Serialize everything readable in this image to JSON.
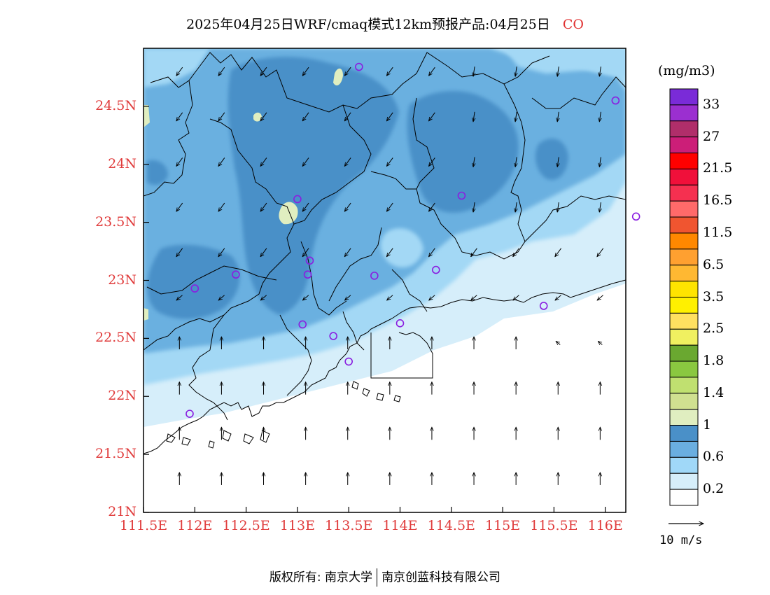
{
  "title": {
    "text": "2025年04月25日WRF/cmaq模式12km预报产品:04月25日",
    "variable": "CO"
  },
  "axes": {
    "lat_labels": [
      "24.5N",
      "24N",
      "23.5N",
      "23N",
      "22.5N",
      "22N",
      "21.5N",
      "21N"
    ],
    "lat_values": [
      24.5,
      24.0,
      23.5,
      23.0,
      22.5,
      22.0,
      21.5,
      21.0
    ],
    "lon_labels": [
      "111.5E",
      "112E",
      "112.5E",
      "113E",
      "113.5E",
      "114E",
      "114.5E",
      "115E",
      "115.5E",
      "116E"
    ],
    "lon_values": [
      111.5,
      112.0,
      112.5,
      113.0,
      113.5,
      114.0,
      114.5,
      115.0,
      115.5,
      116.0
    ],
    "lon_range": [
      111.5,
      116.2
    ],
    "lat_range": [
      21.0,
      25.0
    ]
  },
  "colorbar": {
    "unit": "(mg/m3)",
    "labels": [
      "33",
      "27",
      "21.5",
      "16.5",
      "11.5",
      "6.5",
      "3.5",
      "2.5",
      "1.8",
      "1.4",
      "1",
      "0.6",
      "0.2"
    ],
    "colors": [
      "#7a2bd8",
      "#9b2fd0",
      "#b02e6a",
      "#cc1e78",
      "#ff0000",
      "#f0103a",
      "#f53050",
      "#ff6a6a",
      "#f05530",
      "#ff8800",
      "#ffa030",
      "#ffb832",
      "#ffe400",
      "#fff000",
      "#ffe060",
      "#f0f060",
      "#6aa830",
      "#8ac840",
      "#c0e070",
      "#d0e090",
      "#e0eec0",
      "#4a90c8",
      "#6aaee0",
      "#a0d8f8",
      "#d6eefa",
      "#ffffff"
    ]
  },
  "map_colors": {
    "level_05": "#d6eefa",
    "level_06": "#a3d8f5",
    "level_07": "#6ab0e0",
    "level_08": "#4a90c8",
    "level_10": "#e0eec0"
  },
  "wind_reference": {
    "label": "10  m/s",
    "speed": 10
  },
  "stations": [
    {
      "lon": 113.6,
      "lat": 24.84
    },
    {
      "lon": 116.1,
      "lat": 24.55
    },
    {
      "lon": 113.0,
      "lat": 23.7
    },
    {
      "lon": 114.6,
      "lat": 23.73
    },
    {
      "lon": 116.3,
      "lat": 23.55
    },
    {
      "lon": 112.4,
      "lat": 23.05
    },
    {
      "lon": 113.12,
      "lat": 23.17
    },
    {
      "lon": 113.1,
      "lat": 23.05
    },
    {
      "lon": 113.75,
      "lat": 23.04
    },
    {
      "lon": 114.35,
      "lat": 23.09
    },
    {
      "lon": 112.0,
      "lat": 22.93
    },
    {
      "lon": 113.05,
      "lat": 22.62
    },
    {
      "lon": 114.0,
      "lat": 22.63
    },
    {
      "lon": 113.35,
      "lat": 22.52
    },
    {
      "lon": 115.4,
      "lat": 22.78
    },
    {
      "lon": 113.5,
      "lat": 22.3
    },
    {
      "lon": 111.95,
      "lat": 21.85
    }
  ],
  "footer": {
    "left": "版权所有: 南京大学",
    "right": "南京创蓝科技有限公司"
  }
}
